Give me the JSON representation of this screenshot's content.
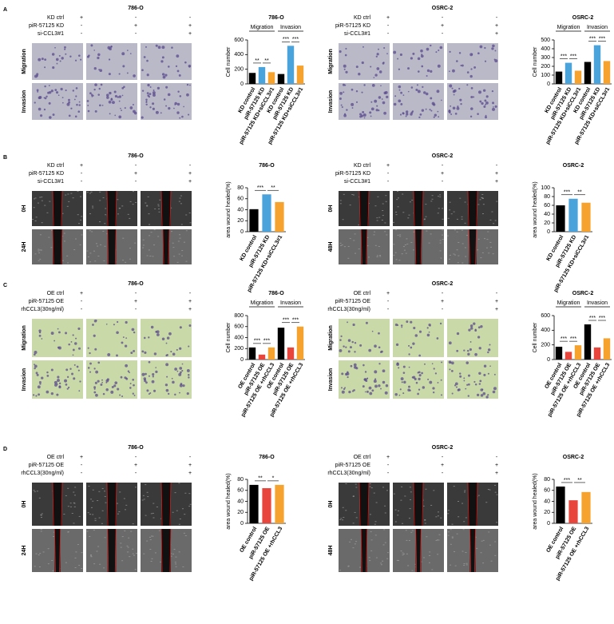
{
  "panels": [
    {
      "label": "A",
      "halves": [
        {
          "title": "786-O",
          "conditions": [
            {
              "label": "KD ctrl",
              "signs": [
                "+",
                "-",
                "-"
              ]
            },
            {
              "label": "piR-57125 KD",
              "signs": [
                "-",
                "+",
                "+"
              ]
            },
            {
              "label": "si-CCL3#1",
              "signs": [
                "-",
                "-",
                "+"
              ]
            }
          ],
          "rows": [
            "Migration",
            "Invasion"
          ]
        },
        {
          "title": "OSRC-2",
          "conditions": [
            {
              "label": "KD ctrl",
              "signs": [
                "+",
                "-",
                "-"
              ]
            },
            {
              "label": "piR-57125 KD",
              "signs": [
                "-",
                "+",
                "+"
              ]
            },
            {
              "label": "si-CCL3#1",
              "signs": [
                "-",
                "-",
                "+"
              ]
            }
          ],
          "rows": [
            "Migration",
            "Invasion"
          ]
        }
      ]
    },
    {
      "label": "B",
      "halves": [
        {
          "title": "786-O",
          "conditions": [
            {
              "label": "KD ctrl",
              "signs": [
                "+",
                "-",
                "-"
              ]
            },
            {
              "label": "piR-57125 KD",
              "signs": [
                "-",
                "+",
                "+"
              ]
            },
            {
              "label": "si-CCL3#1",
              "signs": [
                "-",
                "-",
                "+"
              ]
            }
          ],
          "rows": [
            "0H",
            "24H"
          ]
        },
        {
          "title": "OSRC-2",
          "conditions": [
            {
              "label": "KD ctrl",
              "signs": [
                "+",
                "-",
                "-"
              ]
            },
            {
              "label": "piR-57125 KD",
              "signs": [
                "-",
                "+",
                "+"
              ]
            },
            {
              "label": "si-CCL3#1",
              "signs": [
                "-",
                "-",
                "+"
              ]
            }
          ],
          "rows": [
            "0H",
            "48H"
          ]
        }
      ]
    },
    {
      "label": "C",
      "halves": [
        {
          "title": "786-O",
          "conditions": [
            {
              "label": "OE ctrl",
              "signs": [
                "+",
                "-",
                "-"
              ]
            },
            {
              "label": "piR-57125 OE",
              "signs": [
                "-",
                "+",
                "+"
              ]
            },
            {
              "label": "rhCCL3(30ng/ml)",
              "signs": [
                "-",
                "-",
                "+"
              ]
            }
          ],
          "rows": [
            "Migration",
            "Invasion"
          ]
        },
        {
          "title": "OSRC-2",
          "conditions": [
            {
              "label": "OE ctrl",
              "signs": [
                "+",
                "-",
                "-"
              ]
            },
            {
              "label": "piR-57125 OE",
              "signs": [
                "-",
                "+",
                "+"
              ]
            },
            {
              "label": "rhCCL3(30ng/ml)",
              "signs": [
                "-",
                "-",
                "+"
              ]
            }
          ],
          "rows": [
            "Migration",
            "Invasion"
          ]
        }
      ]
    },
    {
      "label": "D",
      "halves": [
        {
          "title": "786-O",
          "conditions": [
            {
              "label": "OE ctrl",
              "signs": [
                "+",
                "-",
                "-"
              ]
            },
            {
              "label": "piR-57125 OE",
              "signs": [
                "-",
                "+",
                "+"
              ]
            },
            {
              "label": "rhCCL3(30ng/ml)",
              "signs": [
                "-",
                "-",
                "+"
              ]
            }
          ],
          "rows": [
            "0H",
            "24H"
          ]
        },
        {
          "title": "OSRC-2",
          "conditions": [
            {
              "label": "OE ctrl",
              "signs": [
                "+",
                "-",
                "-"
              ]
            },
            {
              "label": "piR-57125 OE",
              "signs": [
                "-",
                "+",
                "+"
              ]
            },
            {
              "label": "rhCCL3(30ng/ml)",
              "signs": [
                "-",
                "-",
                "+"
              ]
            }
          ],
          "rows": [
            "0H",
            "48H"
          ]
        }
      ]
    }
  ],
  "chart_data": [
    {
      "type": "bar",
      "title": "786-O",
      "ylabel": "Cell number",
      "groups": [
        "Migration",
        "Invasion"
      ],
      "categories": [
        "KD control",
        "piR-57125 KD",
        "piR-57125 KD+siCCL3#1",
        "KD control",
        "piR-57125 KD",
        "piR-57125 KD+siCCL3#1"
      ],
      "values": [
        150,
        230,
        160,
        135,
        520,
        250
      ],
      "colors": [
        "#000000",
        "#4ba3dc",
        "#f5a32e",
        "#000000",
        "#4ba3dc",
        "#f5a32e"
      ],
      "annotations": [
        "**",
        "**",
        "***",
        "***"
      ],
      "ylim": [
        0,
        600
      ],
      "yticks": [
        0,
        200,
        400,
        600
      ]
    },
    {
      "type": "bar",
      "title": "OSRC-2",
      "ylabel": "Cell number",
      "groups": [
        "Migration",
        "Invasion"
      ],
      "categories": [
        "KD control",
        "piR-57125 KD",
        "piR-57125 KD+siCCL3#1",
        "KD control",
        "piR-57125 KD",
        "piR-57125 KD+siCCL3#1"
      ],
      "values": [
        140,
        240,
        150,
        250,
        440,
        260
      ],
      "colors": [
        "#000000",
        "#4ba3dc",
        "#f5a32e",
        "#000000",
        "#4ba3dc",
        "#f5a32e"
      ],
      "annotations": [
        "***",
        "***",
        "***",
        "***"
      ],
      "ylim": [
        0,
        500
      ],
      "yticks": [
        0,
        100,
        200,
        300,
        400,
        500
      ]
    },
    {
      "type": "bar",
      "title": "786-O",
      "ylabel": "area wound healed(%)",
      "categories": [
        "KD control",
        "piR-57125 KD",
        "piR-57125 KD+siCCL3#1"
      ],
      "values": [
        41,
        68,
        54
      ],
      "colors": [
        "#000000",
        "#4ba3dc",
        "#f5a32e"
      ],
      "annotations": [
        "***",
        "**"
      ],
      "ylim": [
        0,
        80
      ],
      "yticks": [
        0,
        20,
        40,
        60,
        80
      ]
    },
    {
      "type": "bar",
      "title": "OSRC-2",
      "ylabel": "area wound healed(%)",
      "categories": [
        "KD control",
        "piR-57125 KD",
        "piR-57125 KD+siCCL3#1"
      ],
      "values": [
        60,
        75,
        66
      ],
      "colors": [
        "#000000",
        "#4ba3dc",
        "#f5a32e"
      ],
      "annotations": [
        "***",
        "**"
      ],
      "ylim": [
        0,
        100
      ],
      "yticks": [
        0,
        20,
        40,
        60,
        80,
        100
      ]
    },
    {
      "type": "bar",
      "title": "786-O",
      "ylabel": "Cell number",
      "groups": [
        "Migration",
        "Invasion"
      ],
      "categories": [
        "OE control",
        "piR-57125 OE",
        "piR-57125 OE +rhCCL3",
        "OE control",
        "piR-57125 OE",
        "piR-57125 OE +rhCCL3"
      ],
      "values": [
        220,
        90,
        220,
        580,
        220,
        600
      ],
      "colors": [
        "#000000",
        "#e8453c",
        "#f5a32e",
        "#000000",
        "#e8453c",
        "#f5a32e"
      ],
      "annotations": [
        "***",
        "***",
        "***",
        "***"
      ],
      "ylim": [
        0,
        800
      ],
      "yticks": [
        0,
        200,
        400,
        600,
        800
      ]
    },
    {
      "type": "bar",
      "title": "OSRC-2",
      "ylabel": "Cell number",
      "groups": [
        "Migration",
        "Invasion"
      ],
      "categories": [
        "OE control",
        "piR-57125 OE",
        "piR-57125 OE +rhCCL3",
        "OE control",
        "piR-57125 OE",
        "piR-57125 OE +rhCCL3"
      ],
      "values": [
        175,
        105,
        195,
        480,
        165,
        290
      ],
      "colors": [
        "#000000",
        "#e8453c",
        "#f5a32e",
        "#000000",
        "#e8453c",
        "#f5a32e"
      ],
      "annotations": [
        "***",
        "***",
        "***",
        "***"
      ],
      "ylim": [
        0,
        600
      ],
      "yticks": [
        0,
        200,
        400,
        600
      ]
    },
    {
      "type": "bar",
      "title": "786-O",
      "ylabel": "area wound healed(%)",
      "categories": [
        "OE control",
        "piR-57125 OE",
        "piR-57125 OE +rhCCL3"
      ],
      "values": [
        70,
        64,
        70
      ],
      "colors": [
        "#000000",
        "#e8453c",
        "#f5a32e"
      ],
      "annotations": [
        "**",
        "*"
      ],
      "ylim": [
        0,
        80
      ],
      "yticks": [
        0,
        20,
        40,
        60,
        80
      ]
    },
    {
      "type": "bar",
      "title": "OSRC-2",
      "ylabel": "area wound healed(%)",
      "categories": [
        "OE control",
        "piR-57125 OE",
        "piR-57125 OE +rhCCL3"
      ],
      "values": [
        67,
        42,
        57
      ],
      "colors": [
        "#000000",
        "#e8453c",
        "#f5a32e"
      ],
      "annotations": [
        "***",
        "**"
      ],
      "ylim": [
        0,
        80
      ],
      "yticks": [
        0,
        20,
        40,
        60,
        80
      ]
    }
  ]
}
